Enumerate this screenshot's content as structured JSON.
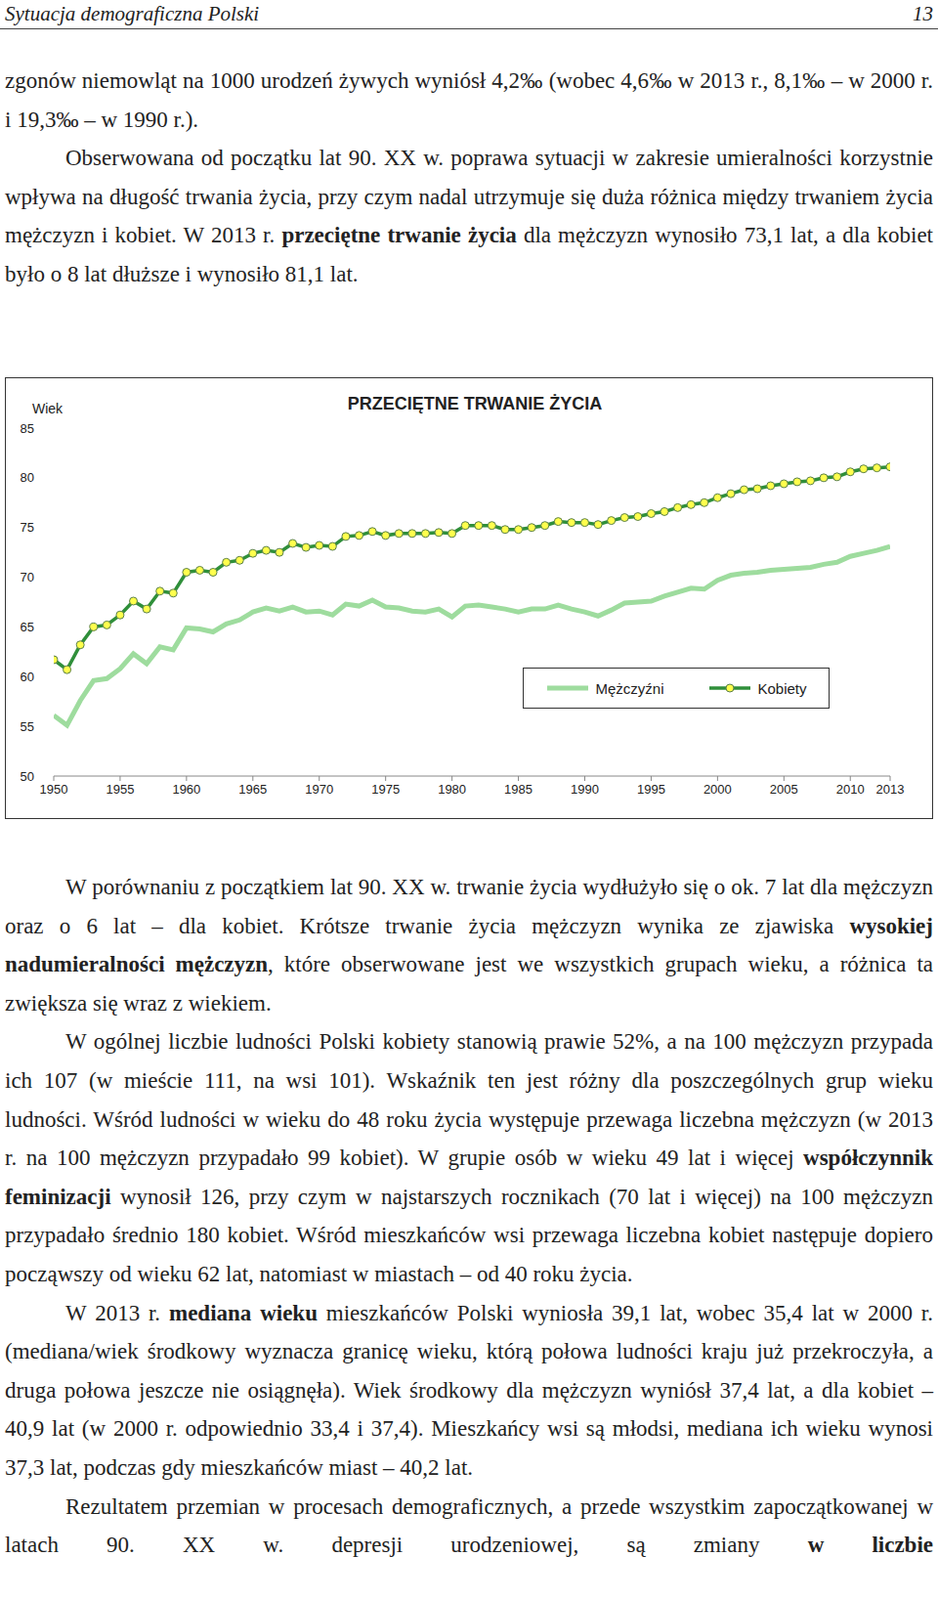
{
  "header": {
    "title": "Sytuacja demograficzna Polski",
    "page": "13"
  },
  "paragraphs_before": [
    [
      {
        "text": "zgonów niemowląt na 1000 urodzeń żywych wyniósł 4,2‰ (wobec 4,6‰ w 2013 r., 8,1‰ – w 2000 r. i 19,3‰ – w 1990 r.)."
      }
    ],
    [
      {
        "text": "Obserwowana od początku lat 90. XX w. poprawa sytuacji w zakresie umieralności korzystnie wpływa na długość trwania życia, przy czym nadal utrzymuje się duża różnica między trwaniem życia mężczyzn i kobiet. W 2013 r. "
      },
      {
        "text": "przeciętne trwanie życia",
        "bold": true
      },
      {
        "text": " dla mężczyzn wynosiło 73,1 lat, a dla kobiet było o 8 lat dłuższe i wynosiło 81,1 lat."
      }
    ]
  ],
  "chart_data": {
    "type": "line",
    "title": "PRZECIĘTNE TRWANIE ŻYCIA",
    "y_label": "Wiek",
    "x": [
      1950,
      1951,
      1952,
      1953,
      1954,
      1955,
      1956,
      1957,
      1958,
      1959,
      1960,
      1961,
      1962,
      1963,
      1964,
      1965,
      1966,
      1967,
      1968,
      1969,
      1970,
      1971,
      1972,
      1973,
      1974,
      1975,
      1976,
      1977,
      1978,
      1979,
      1980,
      1981,
      1982,
      1983,
      1984,
      1985,
      1986,
      1987,
      1988,
      1989,
      1990,
      1991,
      1992,
      1993,
      1994,
      1995,
      1996,
      1997,
      1998,
      1999,
      2000,
      2001,
      2002,
      2003,
      2004,
      2005,
      2006,
      2007,
      2008,
      2009,
      2010,
      2011,
      2012,
      2013
    ],
    "series": [
      {
        "name": "Mężczyźni",
        "color": "#9edc9e",
        "marker": "none",
        "values": [
          56.1,
          55.1,
          57.6,
          59.6,
          59.8,
          60.8,
          62.3,
          61.3,
          63.0,
          62.7,
          64.9,
          64.8,
          64.5,
          65.3,
          65.7,
          66.5,
          66.9,
          66.6,
          67.0,
          66.5,
          66.6,
          66.2,
          67.3,
          67.1,
          67.7,
          67.0,
          66.9,
          66.6,
          66.5,
          66.8,
          66.0,
          67.1,
          67.2,
          67.0,
          66.8,
          66.5,
          66.8,
          66.8,
          67.2,
          66.8,
          66.5,
          66.1,
          66.7,
          67.4,
          67.5,
          67.6,
          68.1,
          68.5,
          68.9,
          68.8,
          69.7,
          70.2,
          70.4,
          70.5,
          70.7,
          70.8,
          70.9,
          71.0,
          71.3,
          71.5,
          72.1,
          72.4,
          72.7,
          73.1
        ]
      },
      {
        "name": "Kobiety",
        "color": "#2f8f3a",
        "marker": "circle",
        "values": [
          61.7,
          60.7,
          63.2,
          65.0,
          65.2,
          66.2,
          67.6,
          66.8,
          68.6,
          68.4,
          70.5,
          70.7,
          70.5,
          71.5,
          71.7,
          72.4,
          72.7,
          72.5,
          73.4,
          73.0,
          73.2,
          73.1,
          74.1,
          74.2,
          74.6,
          74.2,
          74.4,
          74.4,
          74.4,
          74.5,
          74.4,
          75.2,
          75.2,
          75.2,
          74.8,
          74.8,
          75.0,
          75.2,
          75.6,
          75.5,
          75.5,
          75.3,
          75.7,
          76.0,
          76.1,
          76.4,
          76.6,
          77.0,
          77.3,
          77.5,
          78.0,
          78.4,
          78.8,
          78.9,
          79.2,
          79.4,
          79.6,
          79.7,
          80.0,
          80.1,
          80.6,
          80.9,
          81.0,
          81.1
        ]
      }
    ],
    "xlim": [
      1950,
      2013
    ],
    "xticks": [
      1950,
      1955,
      1960,
      1965,
      1970,
      1975,
      1980,
      1985,
      1990,
      1995,
      2000,
      2005,
      2010,
      2013
    ],
    "ylim": [
      50,
      85
    ],
    "yticks": [
      50,
      55,
      60,
      65,
      70,
      75,
      80,
      85
    ],
    "grid": false,
    "legend": "right"
  },
  "paragraphs_after": [
    [
      {
        "text": "W porównaniu z początkiem lat 90. XX w. trwanie życia wydłużyło się o ok. 7 lat dla mężczyzn oraz o 6 lat – dla kobiet. Krótsze trwanie życia mężczyzn wynika ze zjawiska "
      },
      {
        "text": "wysokiej nadumieralności mężczyzn",
        "bold": true
      },
      {
        "text": ", które obserwowane jest we wszystkich grupach wieku, a różnica ta zwiększa się wraz z wiekiem."
      }
    ],
    [
      {
        "text": "W ogólnej liczbie ludności Polski kobiety stanowią prawie 52%, a na 100 mężczyzn przypada ich 107 (w mieście 111, na wsi 101). Wskaźnik ten jest różny dla poszczególnych grup wieku ludności. Wśród ludności w wieku do 48 roku życia występuje przewaga liczebna mężczyzn (w 2013 r. na 100 mężczyzn przypadało 99 kobiet). W grupie osób w wieku 49 lat i więcej "
      },
      {
        "text": "współczynnik feminizacji",
        "bold": true
      },
      {
        "text": " wynosił 126, przy czym w najstarszych rocznikach (70 lat i więcej) na 100 mężczyzn przypadało średnio 180 kobiet. Wśród mieszkańców wsi przewaga liczebna kobiet następuje dopiero począwszy od wieku 62 lat, natomiast w miastach – od 40 roku życia."
      }
    ],
    [
      {
        "text": "W 2013 r. "
      },
      {
        "text": "mediana wieku",
        "bold": true
      },
      {
        "text": " mieszkańców Polski wyniosła 39,1 lat, wobec 35,4 lat w 2000 r. (mediana/wiek środkowy wyznacza granicę wieku, którą połowa ludności kraju już przekroczyła, a druga połowa jeszcze nie osiągnęła). Wiek środkowy dla mężczyzn wyniósł 37,4 lat, a dla kobiet – 40,9 lat (w 2000 r. odpowiednio 33,4 i 37,4). Mieszkańcy wsi są młodsi, mediana ich wieku wynosi 37,3 lat, podczas gdy mieszkańców miast – 40,2 lat."
      }
    ],
    [
      {
        "text": "Rezultatem przemian w procesach demograficznych, a przede wszystkim zapoczątkowanej w latach 90. XX w. depresji urodzeniowej, są zmiany "
      },
      {
        "text": "w liczbie",
        "bold": true
      }
    ]
  ]
}
